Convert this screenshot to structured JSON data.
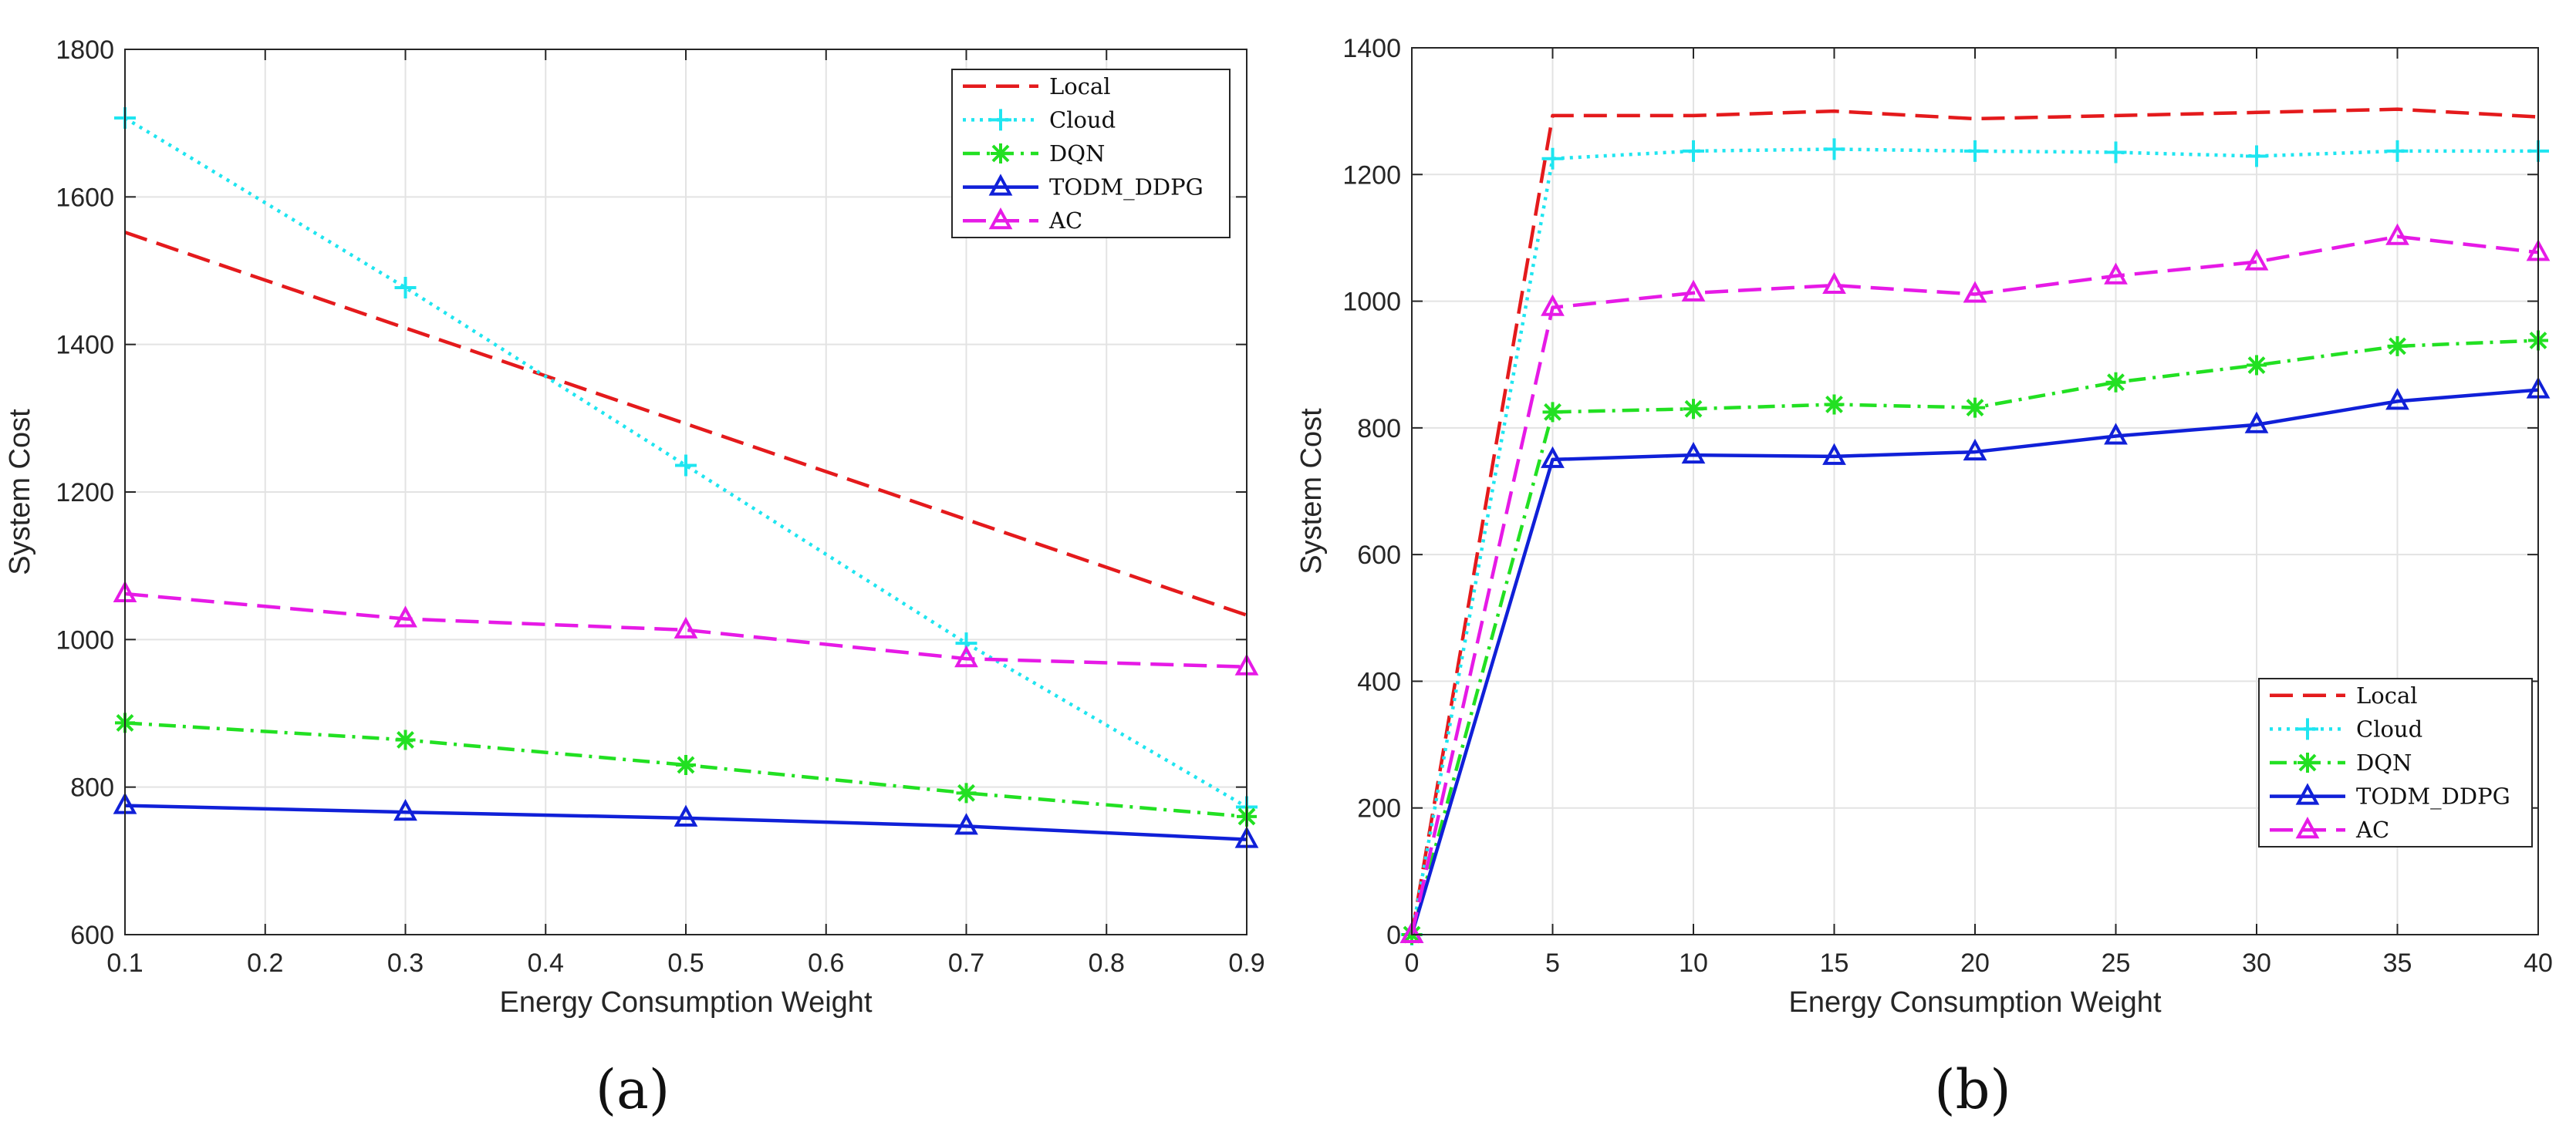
{
  "colors": {
    "Local": "#e41a1c",
    "Cloud": "#1fe5f0",
    "DQN": "#22e022",
    "TODM_DDPG": "#1020d8",
    "AC": "#e61ae6",
    "axis": "#262626",
    "grid": "#e3e3e3"
  },
  "chart_data": [
    {
      "type": "line",
      "panel_label": "(a)",
      "xlabel": "Energy Consumption Weight",
      "ylabel": "System Cost",
      "xlim": [
        0.1,
        0.9
      ],
      "ylim": [
        600,
        1800
      ],
      "xticks": [
        0.1,
        0.2,
        0.3,
        0.4,
        0.5,
        0.6,
        0.7,
        0.8,
        0.9
      ],
      "xtick_labels": [
        "0.1",
        "0.2",
        "0.3",
        "0.4",
        "0.5",
        "0.6",
        "0.7",
        "0.8",
        "0.9"
      ],
      "yticks": [
        600,
        800,
        1000,
        1200,
        1400,
        1600,
        1800
      ],
      "ytick_labels": [
        "600",
        "800",
        "1000",
        "1200",
        "1400",
        "1600",
        "1800"
      ],
      "grid": true,
      "legend_position": "top-right",
      "series": [
        {
          "name": "Local",
          "style": "dashed",
          "marker": "none",
          "x": [
            0.1,
            0.9
          ],
          "values": [
            1552,
            1033
          ]
        },
        {
          "name": "Cloud",
          "style": "dotted",
          "marker": "plus",
          "x": [
            0.1,
            0.3,
            0.5,
            0.7,
            0.9
          ],
          "values": [
            1707,
            1477,
            1236,
            995,
            773
          ]
        },
        {
          "name": "DQN",
          "style": "dashdot",
          "marker": "asterisk",
          "x": [
            0.1,
            0.3,
            0.5,
            0.7,
            0.9
          ],
          "values": [
            887,
            864,
            830,
            792,
            760
          ]
        },
        {
          "name": "TODM_DDPG",
          "style": "solid",
          "marker": "triangle",
          "x": [
            0.1,
            0.3,
            0.5,
            0.7,
            0.9
          ],
          "values": [
            775,
            766,
            758,
            747,
            729
          ]
        },
        {
          "name": "AC",
          "style": "dashed",
          "marker": "triangle",
          "x": [
            0.1,
            0.3,
            0.5,
            0.7,
            0.9
          ],
          "values": [
            1062,
            1028,
            1013,
            974,
            963
          ]
        }
      ]
    },
    {
      "type": "line",
      "panel_label": "(b)",
      "xlabel": "Energy Consumption Weight",
      "ylabel": "System Cost",
      "xlim": [
        0,
        40
      ],
      "ylim": [
        0,
        1400
      ],
      "xticks": [
        0,
        5,
        10,
        15,
        20,
        25,
        30,
        35,
        40
      ],
      "xtick_labels": [
        "0",
        "5",
        "10",
        "15",
        "20",
        "25",
        "30",
        "35",
        "40"
      ],
      "yticks": [
        0,
        200,
        400,
        600,
        800,
        1000,
        1200,
        1400
      ],
      "ytick_labels": [
        "0",
        "200",
        "400",
        "600",
        "800",
        "1000",
        "1200",
        "1400"
      ],
      "grid": true,
      "legend_position": "bottom-right",
      "series": [
        {
          "name": "Local",
          "style": "dashed",
          "marker": "none",
          "x": [
            0,
            5,
            10,
            15,
            20,
            25,
            30,
            35,
            40
          ],
          "values": [
            0,
            1293,
            1293,
            1300,
            1288,
            1293,
            1298,
            1303,
            1291
          ]
        },
        {
          "name": "Cloud",
          "style": "dotted",
          "marker": "plus",
          "x": [
            0,
            5,
            10,
            15,
            20,
            25,
            30,
            35,
            40
          ],
          "values": [
            0,
            1225,
            1237,
            1240,
            1237,
            1235,
            1229,
            1237,
            1237
          ]
        },
        {
          "name": "DQN",
          "style": "dashdot",
          "marker": "asterisk",
          "x": [
            0,
            5,
            10,
            15,
            20,
            25,
            30,
            35,
            40
          ],
          "values": [
            0,
            825,
            830,
            837,
            832,
            872,
            899,
            929,
            938
          ]
        },
        {
          "name": "TODM_DDPG",
          "style": "solid",
          "marker": "triangle",
          "x": [
            0,
            5,
            10,
            15,
            20,
            25,
            30,
            35,
            40
          ],
          "values": [
            0,
            750,
            757,
            755,
            762,
            787,
            805,
            842,
            860
          ]
        },
        {
          "name": "AC",
          "style": "dashed",
          "marker": "triangle",
          "x": [
            0,
            5,
            10,
            15,
            20,
            25,
            30,
            35,
            40
          ],
          "values": [
            0,
            990,
            1013,
            1025,
            1011,
            1040,
            1062,
            1102,
            1077
          ]
        }
      ]
    }
  ]
}
